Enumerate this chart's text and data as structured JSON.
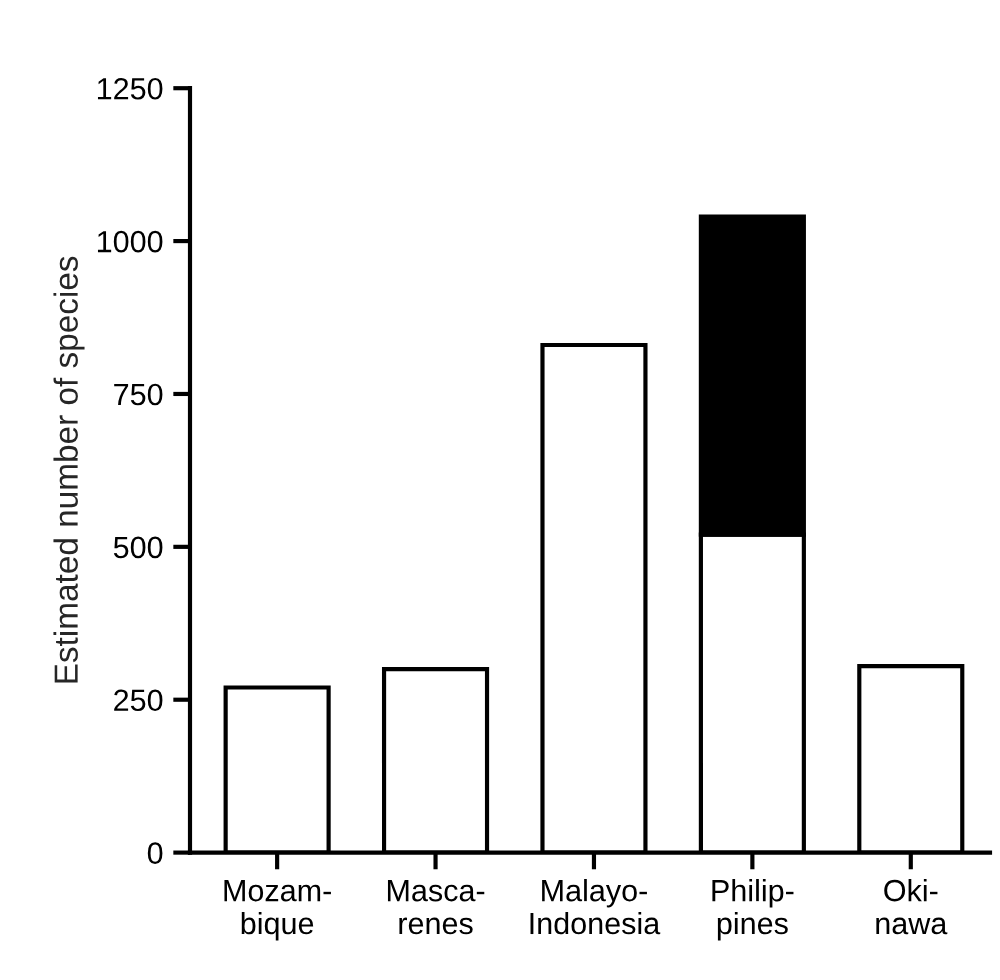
{
  "chart_data": {
    "type": "bar",
    "ylabel": "Estimated number of species",
    "categories": [
      "Mozam-\nbique",
      "Masca-\nrenes",
      "Malayo-\nIndonesia",
      "Philip-\npines",
      "Oki-\nnawa"
    ],
    "stacked": true,
    "series": [
      {
        "color": "#ffffff",
        "values": [
          270,
          300,
          830,
          520,
          305
        ]
      },
      {
        "color": "#000000",
        "values": [
          null,
          null,
          null,
          520,
          null
        ]
      }
    ],
    "ylim": [
      0,
      1250
    ],
    "yticks": [
      0,
      250,
      500,
      750,
      1000,
      1250
    ],
    "grid": false,
    "legend": false
  }
}
